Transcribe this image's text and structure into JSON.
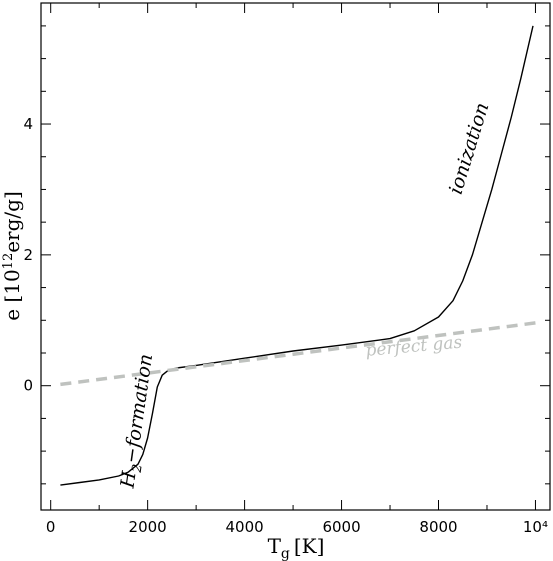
{
  "chart_data": {
    "type": "line",
    "title": "",
    "xlabel": "T",
    "xlabel_sub": "g",
    "xlabel_unit": "[K]",
    "ylabel": "e [10",
    "ylabel_sup": "12",
    "ylabel_unit": "erg/g]",
    "xlim": [
      -200,
      10300
    ],
    "ylim": [
      -1.9,
      5.85
    ],
    "x_ticks": [
      {
        "value": 0,
        "label": "0"
      },
      {
        "value": 2000,
        "label": "2000"
      },
      {
        "value": 4000,
        "label": "4000"
      },
      {
        "value": 6000,
        "label": "6000"
      },
      {
        "value": 8000,
        "label": "8000"
      },
      {
        "value": 10000,
        "label": "10⁴"
      }
    ],
    "y_ticks": [
      {
        "value": 0,
        "label": "0"
      },
      {
        "value": 2,
        "label": "2"
      },
      {
        "value": 4,
        "label": "4"
      }
    ],
    "grid": false,
    "series": [
      {
        "style": "solid",
        "color": "#000000",
        "x": [
          200,
          600,
          1000,
          1400,
          1600,
          1800,
          1900,
          2000,
          2100,
          2200,
          2300,
          2400,
          2500,
          2600,
          3000,
          4000,
          5000,
          6000,
          7000,
          7500,
          8000,
          8300,
          8500,
          8700,
          8900,
          9100,
          9300,
          9500,
          9700,
          9950
        ],
        "y": [
          -1.52,
          -1.48,
          -1.44,
          -1.38,
          -1.32,
          -1.2,
          -1.05,
          -0.8,
          -0.42,
          -0.02,
          0.16,
          0.22,
          0.25,
          0.27,
          0.31,
          0.42,
          0.53,
          0.62,
          0.72,
          0.84,
          1.05,
          1.3,
          1.6,
          2.0,
          2.5,
          3.0,
          3.55,
          4.1,
          4.7,
          5.5
        ]
      },
      {
        "style": "dashed",
        "color": "#bfc2bf",
        "x": [
          200,
          10000
        ],
        "y": [
          0.02,
          0.96
        ]
      }
    ],
    "annotations": [
      {
        "text_main": "H",
        "text_sub": "2",
        "text_rest": "−formation",
        "x": 1900,
        "y": -0.55,
        "rotation": -82
      },
      {
        "text": "ionization",
        "x": 8750,
        "y": 3.6,
        "rotation": -73
      },
      {
        "text": "perfect gas",
        "x": 7500,
        "y": 0.52,
        "rotation": -5
      }
    ]
  }
}
